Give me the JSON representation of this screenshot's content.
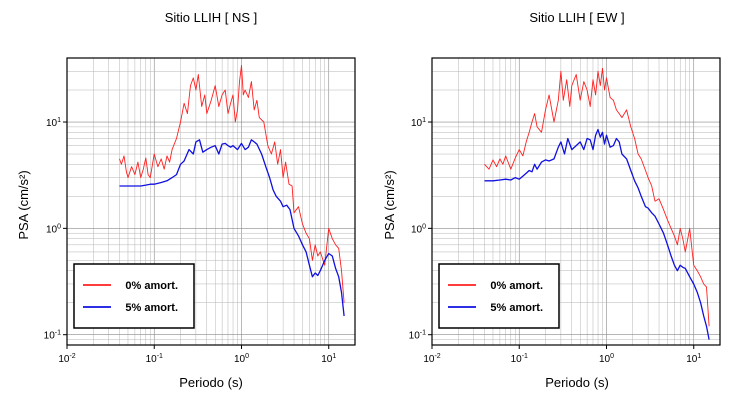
{
  "chart_data": [
    {
      "type": "line",
      "title": "Sitio LLIH [ NS ]",
      "xlabel": "Periodo (s)",
      "ylabel": "PSA (cm/s²)",
      "xscale": "log",
      "yscale": "log",
      "xlim": [
        0.01,
        20
      ],
      "ylim": [
        0.08,
        40
      ],
      "xticks": [
        {
          "base": "10",
          "exp": "-2",
          "value": 0.01
        },
        {
          "base": "10",
          "exp": "-1",
          "value": 0.1
        },
        {
          "base": "10",
          "exp": "0",
          "value": 1
        },
        {
          "base": "10",
          "exp": "1",
          "value": 10
        }
      ],
      "yticks": [
        {
          "base": "10",
          "exp": "-1",
          "value": 0.1
        },
        {
          "base": "10",
          "exp": "0",
          "value": 1
        },
        {
          "base": "10",
          "exp": "1",
          "value": 10
        }
      ],
      "grid": true,
      "legend_position": "bottom-left",
      "series": [
        {
          "name": "0% amort.",
          "color": "#ff2020",
          "x": [
            0.04,
            0.042,
            0.045,
            0.048,
            0.05,
            0.055,
            0.06,
            0.065,
            0.07,
            0.075,
            0.08,
            0.085,
            0.09,
            0.1,
            0.11,
            0.12,
            0.13,
            0.14,
            0.15,
            0.16,
            0.18,
            0.2,
            0.22,
            0.24,
            0.26,
            0.28,
            0.3,
            0.32,
            0.35,
            0.38,
            0.4,
            0.45,
            0.5,
            0.55,
            0.6,
            0.65,
            0.7,
            0.75,
            0.8,
            0.85,
            0.9,
            0.95,
            1.0,
            1.05,
            1.1,
            1.2,
            1.3,
            1.4,
            1.5,
            1.6,
            1.8,
            2.0,
            2.2,
            2.4,
            2.6,
            2.8,
            3.0,
            3.2,
            3.5,
            3.8,
            4.0,
            4.5,
            5.0,
            5.5,
            6.0,
            6.5,
            7.0,
            7.5,
            8.0,
            9.0,
            10.0,
            11.0,
            12.0,
            13.0,
            14.0,
            15.0
          ],
          "y": [
            4.5,
            4.0,
            4.8,
            3.4,
            3.0,
            3.8,
            3.2,
            4.2,
            3.0,
            3.6,
            4.6,
            3.2,
            3.0,
            5.0,
            3.8,
            4.5,
            3.6,
            4.8,
            4.2,
            5.5,
            7.0,
            10.0,
            15.0,
            12.0,
            22.0,
            26.0,
            20.0,
            28.0,
            14.0,
            18.0,
            12.0,
            16.0,
            22.0,
            14.0,
            18.0,
            20.0,
            12.0,
            15.0,
            18.0,
            10.0,
            13.0,
            24.0,
            34.0,
            18.0,
            20.0,
            17.0,
            24.0,
            13.0,
            16.0,
            11.0,
            10.0,
            6.0,
            5.0,
            6.5,
            4.0,
            5.5,
            3.0,
            4.2,
            2.6,
            2.5,
            1.4,
            1.6,
            1.1,
            0.9,
            0.8,
            0.5,
            0.7,
            0.55,
            0.6,
            0.45,
            1.0,
            0.8,
            0.7,
            0.65,
            0.4,
            0.2
          ]
        },
        {
          "name": "5% amort.",
          "color": "#1010e0",
          "x": [
            0.04,
            0.05,
            0.06,
            0.07,
            0.08,
            0.09,
            0.1,
            0.12,
            0.14,
            0.16,
            0.18,
            0.2,
            0.22,
            0.25,
            0.28,
            0.3,
            0.33,
            0.36,
            0.4,
            0.45,
            0.5,
            0.55,
            0.6,
            0.65,
            0.7,
            0.75,
            0.8,
            0.9,
            1.0,
            1.1,
            1.2,
            1.3,
            1.4,
            1.5,
            1.7,
            1.9,
            2.1,
            2.3,
            2.5,
            2.8,
            3.0,
            3.3,
            3.6,
            4.0,
            4.5,
            5.0,
            5.5,
            6.0,
            6.5,
            7.0,
            7.5,
            8.0,
            9.0,
            10.0,
            11.0,
            12.0,
            13.0,
            14.0,
            15.0
          ],
          "y": [
            2.5,
            2.5,
            2.5,
            2.5,
            2.55,
            2.6,
            2.6,
            2.7,
            2.8,
            3.0,
            3.2,
            4.0,
            4.3,
            5.5,
            5.0,
            6.5,
            6.8,
            5.2,
            5.5,
            5.8,
            6.0,
            5.0,
            6.2,
            6.3,
            6.0,
            5.8,
            6.0,
            5.5,
            6.3,
            5.5,
            5.8,
            6.8,
            6.5,
            6.2,
            5.0,
            3.8,
            3.0,
            2.3,
            2.0,
            1.8,
            1.6,
            1.65,
            1.5,
            1.0,
            0.85,
            0.7,
            0.6,
            0.45,
            0.35,
            0.38,
            0.36,
            0.4,
            0.5,
            0.58,
            0.55,
            0.42,
            0.35,
            0.25,
            0.15
          ]
        }
      ]
    },
    {
      "type": "line",
      "title": "Sitio LLIH [ EW ]",
      "xlabel": "Periodo (s)",
      "ylabel": "PSA (cm/s²)",
      "xscale": "log",
      "yscale": "log",
      "xlim": [
        0.01,
        20
      ],
      "ylim": [
        0.08,
        40
      ],
      "xticks": [
        {
          "base": "10",
          "exp": "-2",
          "value": 0.01
        },
        {
          "base": "10",
          "exp": "-1",
          "value": 0.1
        },
        {
          "base": "10",
          "exp": "0",
          "value": 1
        },
        {
          "base": "10",
          "exp": "1",
          "value": 10
        }
      ],
      "yticks": [
        {
          "base": "10",
          "exp": "-1",
          "value": 0.1
        },
        {
          "base": "10",
          "exp": "0",
          "value": 1
        },
        {
          "base": "10",
          "exp": "1",
          "value": 10
        }
      ],
      "grid": true,
      "legend_position": "bottom-left",
      "series": [
        {
          "name": "0% amort.",
          "color": "#ff2020",
          "x": [
            0.04,
            0.045,
            0.05,
            0.055,
            0.06,
            0.065,
            0.07,
            0.08,
            0.09,
            0.1,
            0.11,
            0.12,
            0.13,
            0.14,
            0.15,
            0.16,
            0.18,
            0.2,
            0.22,
            0.25,
            0.28,
            0.3,
            0.32,
            0.35,
            0.38,
            0.4,
            0.45,
            0.5,
            0.55,
            0.6,
            0.65,
            0.7,
            0.75,
            0.8,
            0.85,
            0.9,
            0.95,
            1.0,
            1.1,
            1.2,
            1.3,
            1.4,
            1.5,
            1.7,
            1.9,
            2.1,
            2.3,
            2.5,
            2.8,
            3.0,
            3.3,
            3.6,
            4.0,
            4.5,
            5.0,
            5.5,
            6.0,
            6.5,
            7.0,
            7.5,
            8.0,
            9.0,
            10.0,
            11.0,
            12.0,
            13.0,
            14.0,
            15.0
          ],
          "y": [
            4.0,
            3.6,
            4.4,
            3.8,
            4.5,
            4.0,
            4.8,
            3.6,
            4.6,
            5.5,
            4.8,
            6.5,
            8.0,
            10.0,
            12.0,
            9.0,
            8.0,
            13.0,
            18.0,
            10.0,
            16.0,
            30.0,
            16.0,
            25.0,
            14.0,
            22.0,
            28.0,
            16.0,
            24.0,
            20.0,
            14.0,
            25.0,
            18.0,
            30.0,
            22.0,
            32.0,
            20.0,
            26.0,
            17.0,
            16.0,
            13.0,
            12.0,
            11.0,
            13.0,
            9.0,
            7.0,
            5.0,
            4.5,
            3.5,
            3.0,
            2.5,
            1.8,
            1.9,
            1.5,
            1.2,
            1.0,
            0.85,
            0.7,
            1.0,
            0.8,
            0.6,
            1.0,
            0.45,
            0.4,
            0.35,
            0.3,
            0.28,
            0.12
          ]
        },
        {
          "name": "5% amort.",
          "color": "#1010e0",
          "x": [
            0.04,
            0.05,
            0.06,
            0.07,
            0.08,
            0.09,
            0.1,
            0.11,
            0.12,
            0.13,
            0.14,
            0.15,
            0.16,
            0.18,
            0.2,
            0.22,
            0.25,
            0.28,
            0.3,
            0.33,
            0.36,
            0.4,
            0.45,
            0.5,
            0.55,
            0.6,
            0.65,
            0.7,
            0.75,
            0.8,
            0.85,
            0.9,
            0.95,
            1.0,
            1.1,
            1.2,
            1.3,
            1.4,
            1.5,
            1.7,
            1.9,
            2.1,
            2.3,
            2.5,
            2.8,
            3.0,
            3.3,
            3.6,
            4.0,
            4.5,
            5.0,
            5.5,
            6.0,
            6.5,
            7.0,
            7.5,
            8.0,
            9.0,
            10.0,
            11.0,
            12.0,
            13.0,
            14.0,
            15.0
          ],
          "y": [
            2.8,
            2.8,
            2.85,
            2.9,
            2.85,
            3.0,
            2.9,
            3.1,
            3.3,
            3.5,
            3.4,
            4.0,
            3.6,
            4.2,
            4.4,
            4.3,
            4.5,
            5.8,
            6.5,
            5.0,
            7.0,
            5.5,
            6.0,
            6.5,
            5.5,
            7.0,
            6.8,
            5.5,
            7.5,
            8.5,
            7.2,
            8.0,
            6.2,
            7.5,
            5.8,
            6.0,
            7.0,
            6.5,
            5.0,
            4.5,
            3.5,
            2.8,
            2.4,
            2.0,
            1.6,
            1.55,
            1.4,
            1.3,
            1.1,
            0.9,
            0.7,
            0.55,
            0.45,
            0.4,
            0.45,
            0.43,
            0.42,
            0.35,
            0.3,
            0.25,
            0.2,
            0.15,
            0.12,
            0.09
          ]
        }
      ]
    }
  ]
}
